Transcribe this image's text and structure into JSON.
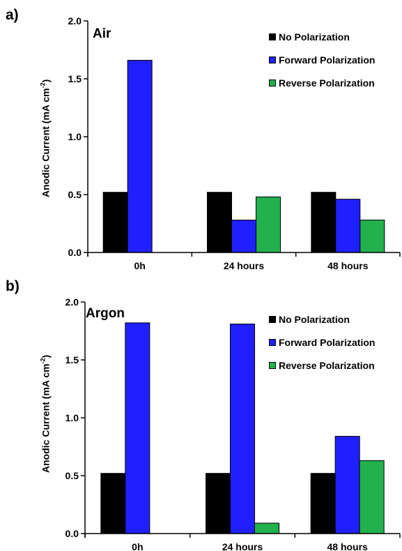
{
  "colors": {
    "no_polarization": "#000000",
    "forward_polarization": "#2020ff",
    "reverse_polarization": "#22b14c"
  },
  "chart_data": [
    {
      "type": "bar",
      "panel_label": "a)",
      "subtitle": "Air",
      "ylabel": "Anodic Current  (mA cm",
      "ylabel_sup": "-2",
      "ylabel_close": ")",
      "ylim": [
        0,
        2.0
      ],
      "yticks": [
        "0.0",
        "0.5",
        "1.0",
        "1.5",
        "2.0"
      ],
      "categories": [
        "0h",
        "24 hours",
        "48 hours"
      ],
      "legend_position": "top-right",
      "series": [
        {
          "name": "No Polarization",
          "color": "#000000",
          "values": [
            0.52,
            0.52,
            0.52
          ]
        },
        {
          "name": "Forward Polarization",
          "color": "#2020ff",
          "values": [
            1.66,
            0.28,
            0.46
          ]
        },
        {
          "name": "Reverse Polarization",
          "color": "#22b14c",
          "values": [
            null,
            0.48,
            0.28
          ]
        }
      ]
    },
    {
      "type": "bar",
      "panel_label": "b)",
      "subtitle": "Argon",
      "ylabel": "Anodic Current  (mA cm",
      "ylabel_sup": "-2",
      "ylabel_close": ")",
      "ylim": [
        0,
        2.0
      ],
      "yticks": [
        "0.0",
        "0.5",
        "1.0",
        "1.5",
        "2.0"
      ],
      "categories": [
        "0h",
        "24 hours",
        "48 hours"
      ],
      "legend_position": "top-right",
      "series": [
        {
          "name": "No Polarization",
          "color": "#000000",
          "values": [
            0.52,
            0.52,
            0.52
          ]
        },
        {
          "name": "Forward Polarization",
          "color": "#2020ff",
          "values": [
            1.82,
            1.81,
            0.84
          ]
        },
        {
          "name": "Reverse Polarization",
          "color": "#22b14c",
          "values": [
            null,
            0.09,
            0.63
          ]
        }
      ]
    }
  ]
}
